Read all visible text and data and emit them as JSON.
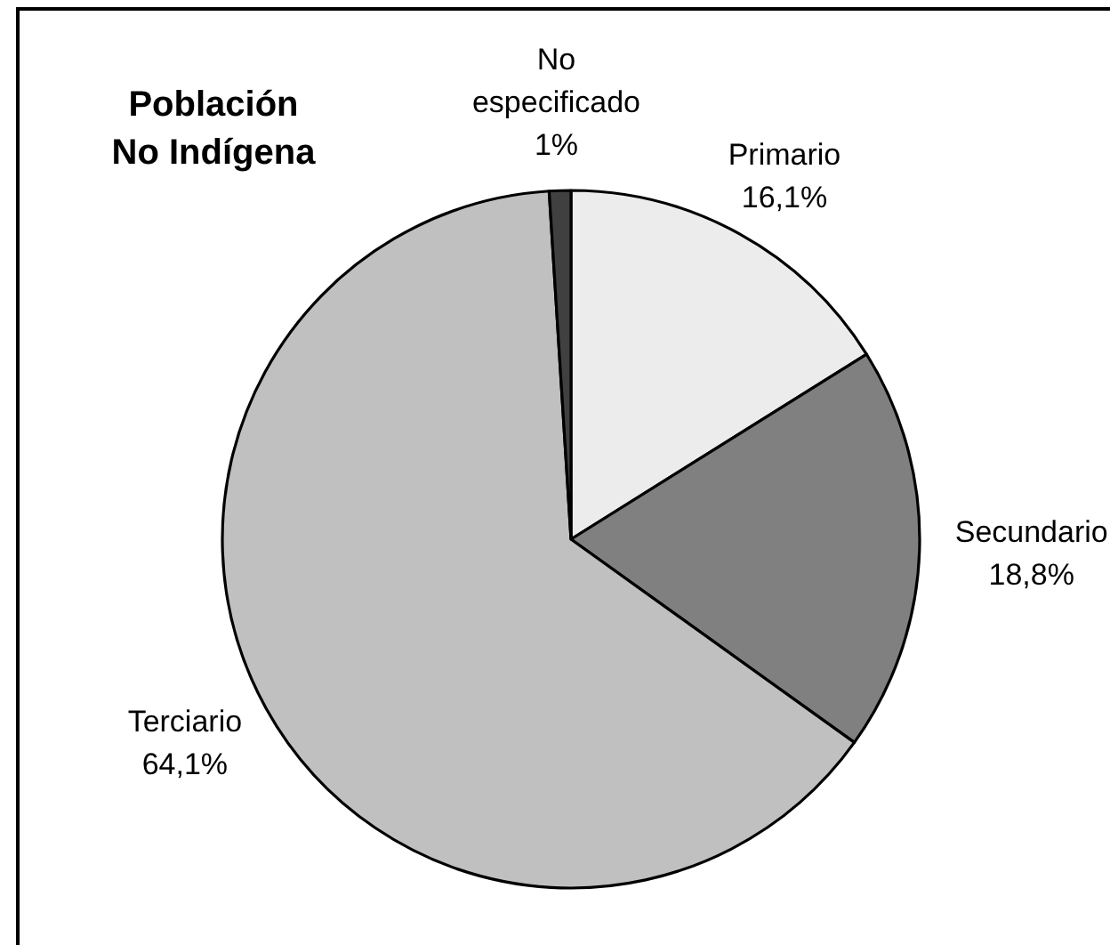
{
  "chart_data": {
    "type": "pie",
    "title": "Población No Indígena",
    "categories": [
      "Primario",
      "Secundario",
      "Terciario",
      "No especificado"
    ],
    "values": [
      16.1,
      18.8,
      64.1,
      1
    ],
    "colors": [
      "#ececec",
      "#808080",
      "#c0c0c0",
      "#404040"
    ],
    "value_labels": [
      "16,1%",
      "18,8%",
      "64,1%",
      "1%"
    ]
  }
}
